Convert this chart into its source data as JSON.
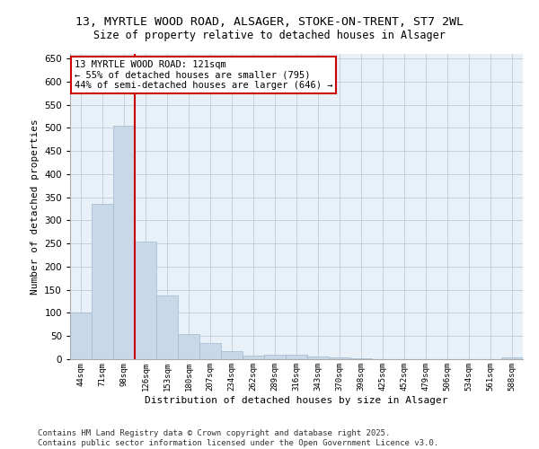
{
  "title1": "13, MYRTLE WOOD ROAD, ALSAGER, STOKE-ON-TRENT, ST7 2WL",
  "title2": "Size of property relative to detached houses in Alsager",
  "xlabel": "Distribution of detached houses by size in Alsager",
  "ylabel": "Number of detached properties",
  "categories": [
    "44sqm",
    "71sqm",
    "98sqm",
    "126sqm",
    "153sqm",
    "180sqm",
    "207sqm",
    "234sqm",
    "262sqm",
    "289sqm",
    "316sqm",
    "343sqm",
    "370sqm",
    "398sqm",
    "425sqm",
    "452sqm",
    "479sqm",
    "506sqm",
    "534sqm",
    "561sqm",
    "588sqm"
  ],
  "values": [
    100,
    335,
    505,
    255,
    137,
    55,
    35,
    18,
    8,
    10,
    10,
    5,
    3,
    2,
    0,
    0,
    0,
    0,
    0,
    0,
    3
  ],
  "bar_color": "#c8d8e8",
  "bar_edgecolor": "#a0b8cc",
  "vline_x": 2.5,
  "vline_color": "#cc0000",
  "annotation_text": "13 MYRTLE WOOD ROAD: 121sqm\n← 55% of detached houses are smaller (795)\n44% of semi-detached houses are larger (646) →",
  "annotation_box_color": "#ffffff",
  "annotation_box_edgecolor": "#cc0000",
  "ylim": [
    0,
    660
  ],
  "yticks": [
    0,
    50,
    100,
    150,
    200,
    250,
    300,
    350,
    400,
    450,
    500,
    550,
    600,
    650
  ],
  "grid_color": "#c0ccd8",
  "bg_color": "#e8f0f8",
  "footer": "Contains HM Land Registry data © Crown copyright and database right 2025.\nContains public sector information licensed under the Open Government Licence v3.0.",
  "title1_fontsize": 9.5,
  "title2_fontsize": 8.5,
  "xlabel_fontsize": 8,
  "ylabel_fontsize": 8,
  "annotation_fontsize": 7.5,
  "footer_fontsize": 6.5
}
